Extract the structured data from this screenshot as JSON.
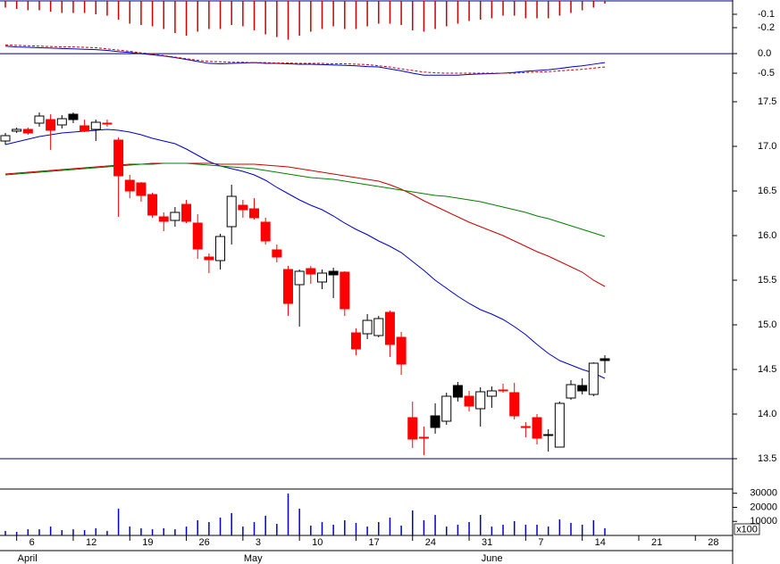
{
  "chart_data": [
    {
      "type": "bar",
      "color": "#cc0000",
      "values": [
        -0.05,
        -0.06,
        -0.07,
        -0.07,
        -0.08,
        -0.09,
        -0.09,
        -0.09,
        -0.1,
        -0.11,
        -0.14,
        -0.17,
        -0.18,
        -0.19,
        -0.21,
        -0.24,
        -0.26,
        -0.23,
        -0.21,
        -0.21,
        -0.18,
        -0.19,
        -0.22,
        -0.25,
        -0.27,
        -0.29,
        -0.26,
        -0.23,
        -0.21,
        -0.19,
        -0.21,
        -0.21,
        -0.19,
        -0.17,
        -0.17,
        -0.18,
        -0.22,
        -0.23,
        -0.21,
        -0.19,
        -0.17,
        -0.15,
        -0.14,
        -0.13,
        -0.11,
        -0.11,
        -0.13,
        -0.13,
        -0.13,
        -0.11,
        -0.09,
        -0.07,
        -0.05,
        -0.02
      ],
      "ylim": [
        -0.3,
        0
      ],
      "yticks": [
        -0.1,
        -0.2
      ]
    },
    {
      "type": "line",
      "series": [
        {
          "color": "#0000cc",
          "values": [
            0.19,
            0.17,
            0.16,
            0.15,
            0.14,
            0.13,
            0.12,
            0.11,
            0.1,
            0.08,
            0.05,
            0.03,
            0,
            -0.03,
            -0.06,
            -0.1,
            -0.15,
            -0.2,
            -0.25,
            -0.26,
            -0.25,
            -0.24,
            -0.23,
            -0.25,
            -0.25,
            -0.26,
            -0.27,
            -0.27,
            -0.28,
            -0.29,
            -0.3,
            -0.31,
            -0.33,
            -0.34,
            -0.39,
            -0.44,
            -0.5,
            -0.55,
            -0.55,
            -0.55,
            -0.55,
            -0.53,
            -0.52,
            -0.51,
            -0.5,
            -0.48,
            -0.45,
            -0.43,
            -0.41,
            -0.38,
            -0.34,
            -0.31,
            -0.27,
            -0.23
          ]
        },
        {
          "color": "#cc0000",
          "dashed": true,
          "values": [
            0.22,
            0.21,
            0.2,
            0.19,
            0.18,
            0.17,
            0.17,
            0.16,
            0.15,
            0.12,
            0.09,
            0.06,
            0.02,
            -0.01,
            -0.05,
            -0.09,
            -0.13,
            -0.17,
            -0.2,
            -0.21,
            -0.22,
            -0.22,
            -0.23,
            -0.23,
            -0.24,
            -0.24,
            -0.25,
            -0.25,
            -0.25,
            -0.26,
            -0.26,
            -0.27,
            -0.28,
            -0.31,
            -0.34,
            -0.39,
            -0.43,
            -0.47,
            -0.49,
            -0.5,
            -0.5,
            -0.5,
            -0.5,
            -0.5,
            -0.5,
            -0.5,
            -0.48,
            -0.47,
            -0.46,
            -0.44,
            -0.42,
            -0.4,
            -0.37,
            -0.34
          ]
        }
      ],
      "ylim": [
        -0.84,
        0.32
      ],
      "yticks": [
        {
          "value": 0,
          "label": "0.0"
        },
        -0.5
      ]
    },
    {
      "type": "candlestick",
      "open": [
        17.06,
        17.17,
        17.19,
        17.26,
        17.3,
        17.24,
        17.36,
        17.23,
        17.19,
        17.26,
        17.07,
        16.62,
        16.59,
        16.46,
        16.21,
        16.17,
        16.35,
        16.14,
        15.76,
        15.72,
        16.1,
        16.34,
        16.3,
        16.15,
        15.84,
        15.62,
        15.45,
        15.63,
        15.48,
        15.56,
        15.59,
        14.91,
        14.9,
        14.88,
        15.14,
        14.86,
        13.96,
        13.74,
        13.85,
        13.92,
        14.19,
        14.2,
        14.06,
        14.2,
        14.27,
        14.24,
        13.86,
        13.96,
        13.76,
        13.63,
        14.18,
        14.26,
        14.22,
        14.6
      ],
      "high": [
        17.15,
        17.21,
        17.21,
        17.38,
        17.36,
        17.35,
        17.38,
        17.3,
        17.3,
        17.3,
        17.1,
        16.68,
        16.6,
        16.48,
        16.26,
        16.32,
        16.4,
        16.24,
        15.8,
        16.02,
        16.57,
        16.4,
        16.42,
        16.2,
        15.9,
        15.66,
        15.62,
        15.66,
        15.62,
        15.64,
        15.6,
        14.96,
        15.12,
        15.1,
        15.16,
        14.92,
        14.14,
        13.86,
        14.12,
        14.24,
        14.36,
        14.26,
        14.3,
        14.31,
        14.34,
        14.35,
        13.91,
        14.0,
        13.83,
        14.14,
        14.38,
        14.4,
        14.58,
        14.66
      ],
      "low": [
        17.02,
        17.15,
        17.13,
        17.22,
        16.96,
        17.2,
        17.26,
        17.16,
        17.06,
        17.22,
        16.21,
        16.42,
        16.38,
        16.2,
        16.05,
        16.1,
        16.14,
        15.74,
        15.58,
        15.62,
        15.9,
        16.2,
        16.18,
        15.9,
        15.7,
        15.1,
        14.98,
        15.46,
        15.4,
        15.3,
        15.1,
        14.66,
        14.84,
        14.86,
        14.64,
        14.44,
        13.62,
        13.54,
        13.78,
        13.88,
        14.14,
        14.03,
        13.86,
        14.07,
        14.24,
        13.94,
        13.74,
        13.66,
        13.58,
        13.63,
        14.16,
        14.22,
        14.2,
        14.46
      ],
      "close": [
        17.12,
        17.19,
        17.15,
        17.34,
        17.18,
        17.31,
        17.3,
        17.17,
        17.27,
        17.25,
        16.67,
        16.5,
        16.45,
        16.23,
        16.16,
        16.26,
        16.16,
        15.85,
        15.73,
        15.99,
        16.44,
        16.29,
        16.2,
        15.94,
        15.76,
        15.24,
        15.6,
        15.57,
        15.58,
        15.6,
        15.18,
        14.73,
        15.05,
        15.07,
        14.78,
        14.56,
        13.72,
        13.73,
        13.98,
        14.2,
        14.32,
        14.09,
        14.25,
        14.26,
        14.26,
        13.98,
        13.85,
        13.73,
        13.77,
        14.12,
        14.33,
        14.32,
        14.57,
        14.62
      ],
      "fills": [
        "#ffffff",
        "#ffffff",
        "#ff0000",
        "#ffffff",
        "#ff0000",
        "#ffffff",
        "#000000",
        "#ff0000",
        "#ffffff",
        "#ff0000",
        "#ff0000",
        "#ff0000",
        "#ff0000",
        "#ff0000",
        "#ff0000",
        "#ffffff",
        "#ff0000",
        "#ff0000",
        "#ff0000",
        "#ffffff",
        "#ffffff",
        "#ff0000",
        "#ff0000",
        "#ff0000",
        "#ff0000",
        "#ff0000",
        "#ffffff",
        "#ff0000",
        "#ffffff",
        "#000000",
        "#ff0000",
        "#ff0000",
        "#ffffff",
        "#ffffff",
        "#ff0000",
        "#ff0000",
        "#ff0000",
        "#ff0000",
        "#000000",
        "#ffffff",
        "#000000",
        "#ff0000",
        "#ffffff",
        "#ffffff",
        "#ff0000",
        "#ff0000",
        "#ff0000",
        "#ff0000",
        "#ffffff",
        "#ffffff",
        "#ffffff",
        "#000000",
        "#ffffff",
        "#000000"
      ],
      "series": [
        {
          "color": "#0000cc",
          "values": [
            17.02,
            17.05,
            17.08,
            17.11,
            17.13,
            17.15,
            17.16,
            17.17,
            17.18,
            17.19,
            17.18,
            17.16,
            17.13,
            17.09,
            17.06,
            17.03,
            16.97,
            16.9,
            16.83,
            16.78,
            16.75,
            16.72,
            16.68,
            16.62,
            16.54,
            16.47,
            16.4,
            16.34,
            16.29,
            16.22,
            16.14,
            16.07,
            16.01,
            15.94,
            15.88,
            15.81,
            15.71,
            15.61,
            15.5,
            15.41,
            15.32,
            15.24,
            15.17,
            15.12,
            15.06,
            14.98,
            14.89,
            14.78,
            14.68,
            14.6,
            14.55,
            14.5,
            14.46,
            14.4
          ]
        },
        {
          "color": "#cc0000",
          "values": [
            16.69,
            16.7,
            16.71,
            16.72,
            16.73,
            16.74,
            16.75,
            16.76,
            16.77,
            16.78,
            16.79,
            16.8,
            16.8,
            16.81,
            16.81,
            16.81,
            16.81,
            16.81,
            16.81,
            16.8,
            16.8,
            16.8,
            16.8,
            16.79,
            16.78,
            16.77,
            16.75,
            16.73,
            16.71,
            16.69,
            16.67,
            16.65,
            16.63,
            16.61,
            16.57,
            16.52,
            16.46,
            16.39,
            16.33,
            16.27,
            16.21,
            16.15,
            16.1,
            16.05,
            16.0,
            15.94,
            15.88,
            15.82,
            15.77,
            15.71,
            15.65,
            15.59,
            15.5,
            15.43
          ]
        },
        {
          "color": "#008000",
          "values": [
            16.68,
            16.69,
            16.7,
            16.71,
            16.72,
            16.73,
            16.74,
            16.75,
            16.76,
            16.77,
            16.78,
            16.79,
            16.8,
            16.8,
            16.81,
            16.81,
            16.81,
            16.8,
            16.79,
            16.78,
            16.77,
            16.76,
            16.75,
            16.73,
            16.71,
            16.69,
            16.67,
            16.65,
            16.64,
            16.63,
            16.61,
            16.59,
            16.57,
            16.55,
            16.53,
            16.51,
            16.49,
            16.47,
            16.45,
            16.44,
            16.42,
            16.4,
            16.38,
            16.35,
            16.32,
            16.29,
            16.26,
            16.22,
            16.19,
            16.15,
            16.11,
            16.07,
            16.03,
            15.99
          ]
        }
      ],
      "ylim": [
        13.5,
        17.67
      ],
      "yticks": [
        13.5,
        {
          "value": 14,
          "label": "14.0"
        },
        14.5,
        {
          "value": 15,
          "label": "15.0"
        },
        15.5,
        {
          "value": 16,
          "label": "16.0"
        },
        16.5,
        {
          "value": 17,
          "label": "17.0"
        },
        17.5
      ]
    },
    {
      "type": "bar",
      "color": "#0000cc",
      "values": [
        3200,
        2500,
        4400,
        4400,
        6300,
        3800,
        4400,
        3800,
        5100,
        3200,
        19000,
        6300,
        5100,
        4400,
        5100,
        4400,
        6300,
        10800,
        9500,
        12700,
        15900,
        6300,
        9500,
        14000,
        8200,
        29800,
        19000,
        7000,
        9500,
        7600,
        10800,
        8900,
        6300,
        9500,
        12700,
        7000,
        17800,
        10800,
        14600,
        6300,
        7600,
        9500,
        14600,
        6300,
        7600,
        10200,
        7600,
        7600,
        6300,
        11400,
        8900,
        7600,
        10800,
        5100
      ],
      "ylim": [
        0,
        33000
      ],
      "yticks": [
        30000,
        20000,
        10000
      ],
      "unit_label": "x100"
    },
    {
      "type": "axis",
      "categories": [
        null,
        "6",
        null,
        null,
        null,
        null,
        "12",
        null,
        null,
        null,
        null,
        "19",
        null,
        null,
        null,
        null,
        "26",
        null,
        null,
        null,
        null,
        "3",
        null,
        null,
        null,
        null,
        "10",
        null,
        null,
        null,
        null,
        "17",
        null,
        null,
        null,
        null,
        "24",
        null,
        null,
        null,
        null,
        "31",
        null,
        null,
        null,
        null,
        "7",
        null,
        null,
        null,
        null,
        "14",
        null,
        null,
        null,
        null,
        "21",
        null,
        null,
        null,
        null,
        "28"
      ],
      "months": [
        null,
        "April",
        null,
        null,
        null,
        null,
        null,
        null,
        null,
        null,
        null,
        null,
        null,
        null,
        null,
        null,
        null,
        null,
        null,
        null,
        null,
        "May",
        null,
        null,
        null,
        null,
        null,
        null,
        null,
        null,
        null,
        null,
        null,
        null,
        null,
        null,
        null,
        null,
        null,
        null,
        null,
        null,
        "June",
        null,
        null,
        null,
        null,
        null,
        null,
        null,
        null,
        null,
        null,
        null,
        null,
        null,
        null,
        null,
        null,
        null,
        null,
        null
      ]
    }
  ]
}
